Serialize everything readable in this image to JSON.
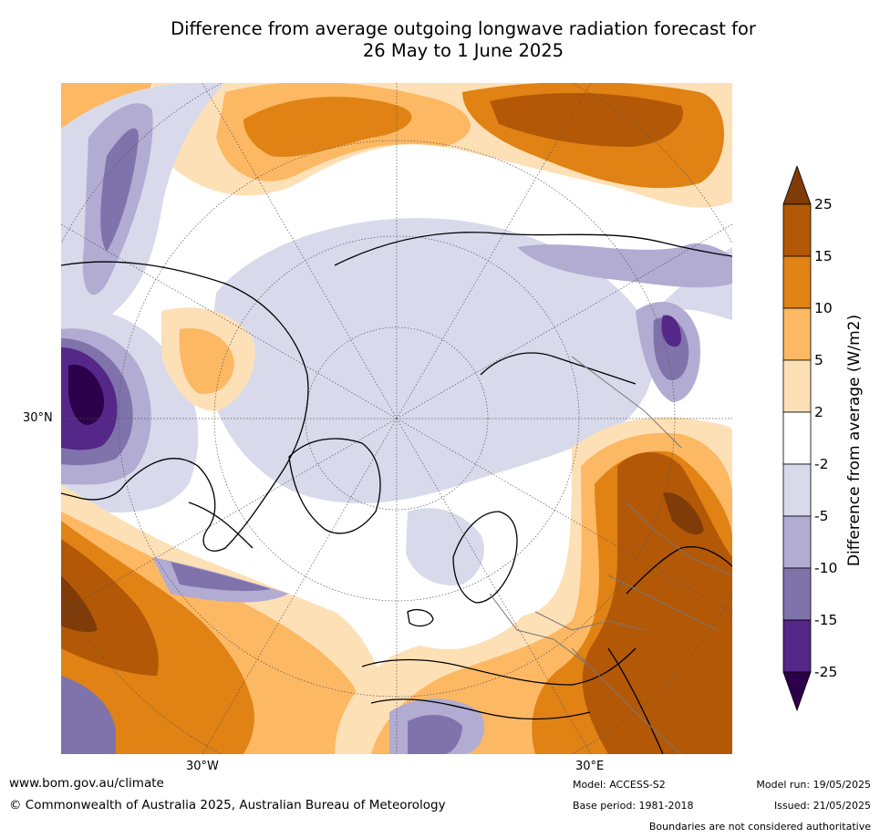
{
  "title_line1": "Difference from average outgoing longwave radiation forecast for",
  "title_line2": "26 May to 1 June 2025",
  "axis": {
    "lat_30n": "30°N",
    "lon_30w": "30°W",
    "lon_30e": "30°E"
  },
  "colorbar": {
    "title": "Difference from average (W/m2)",
    "levels": [
      "25",
      "15",
      "10",
      "5",
      "2",
      "-2",
      "-5",
      "-10",
      "-15",
      "-25"
    ],
    "colors": [
      "#7f3b08",
      "#b35806",
      "#e08214",
      "#fdb863",
      "#fee0b6",
      "#ffffff",
      "#d8daeb",
      "#b2abd2",
      "#8073ac",
      "#542788",
      "#2d004b"
    ]
  },
  "footer": {
    "website": "www.bom.gov.au/climate",
    "copyright": "© Commonwealth of Australia 2025, Australian Bureau of Meteorology",
    "model": "Model: ACCESS-S2",
    "base_period": "Base period: 1981-2018",
    "model_run": "Model run: 19/05/2025",
    "issued": "Issued: 21/05/2025",
    "disclaimer": "Boundaries are not considered authoritative"
  }
}
